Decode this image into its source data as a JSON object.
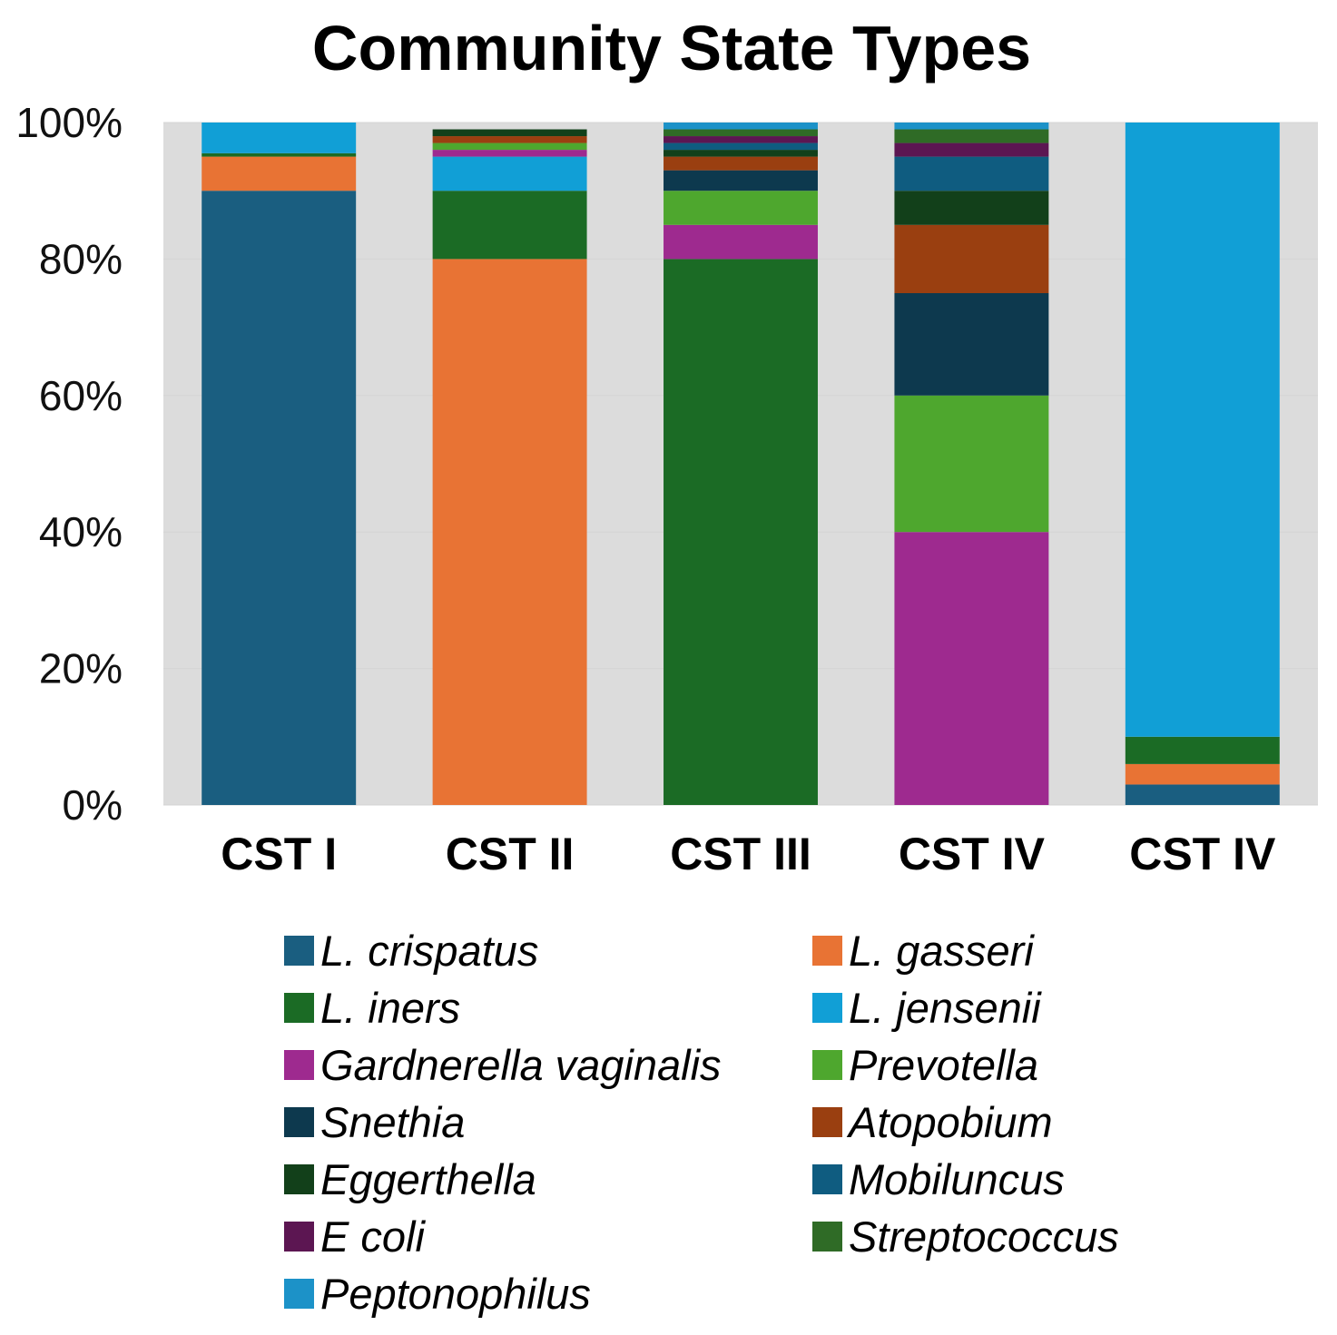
{
  "chart_data": {
    "type": "bar",
    "stacked": true,
    "title": "Community State Types",
    "xlabel": "",
    "ylabel": "",
    "ylim": [
      0,
      100
    ],
    "ytick_labels": [
      "0%",
      "20%",
      "40%",
      "60%",
      "80%",
      "100%"
    ],
    "categories": [
      "CST I",
      "CST II",
      "CST III",
      "CST IV",
      "CST IV"
    ],
    "plot_background": "#dcdcdc",
    "legend_position": "bottom",
    "series": [
      {
        "name": "L. crispatus",
        "color": "#1a5e80",
        "values": [
          90,
          0,
          0,
          0,
          3
        ]
      },
      {
        "name": "L. gasseri",
        "color": "#e87334",
        "values": [
          5,
          80,
          0,
          0,
          3
        ]
      },
      {
        "name": "L. iners",
        "color": "#1b6b25",
        "values": [
          0.5,
          10,
          80,
          0,
          4
        ]
      },
      {
        "name": "L. jensenii",
        "color": "#119fd6",
        "values": [
          4.5,
          5,
          0,
          0,
          90
        ]
      },
      {
        "name": "Gardnerella vaginalis",
        "color": "#9e2a8f",
        "values": [
          0,
          1,
          5,
          40,
          0
        ]
      },
      {
        "name": "Prevotella",
        "color": "#4ea72e",
        "values": [
          0,
          1,
          5,
          20,
          0
        ]
      },
      {
        "name": "Snethia",
        "color": "#0d394e",
        "values": [
          0,
          0,
          3,
          15,
          0
        ]
      },
      {
        "name": "Atopobium",
        "color": "#9a3f10",
        "values": [
          0,
          1,
          2,
          10,
          0
        ]
      },
      {
        "name": "Eggerthella",
        "color": "#12401a",
        "values": [
          0,
          1,
          1,
          5,
          0
        ]
      },
      {
        "name": "Mobiluncus",
        "color": "#0f5c80",
        "values": [
          0,
          0,
          1,
          5,
          0
        ]
      },
      {
        "name": "E coli",
        "color": "#5c1652",
        "values": [
          0,
          0,
          1,
          2,
          0
        ]
      },
      {
        "name": "Streptococcus",
        "color": "#2f6b26",
        "values": [
          0,
          0,
          1,
          2,
          0
        ]
      },
      {
        "name": "Peptonophilus",
        "color": "#1c92c8",
        "values": [
          0,
          0,
          1,
          1,
          0
        ]
      }
    ]
  }
}
